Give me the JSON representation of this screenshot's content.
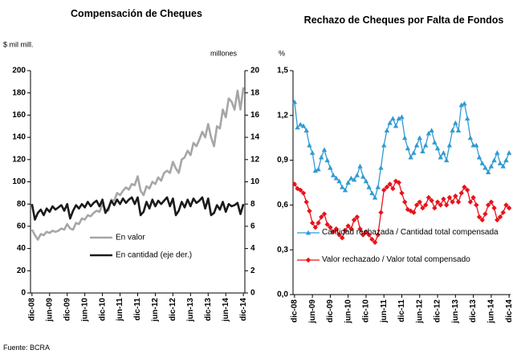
{
  "chart_data": [
    {
      "type": "line",
      "title": "Compensación de Cheques",
      "y_label": "$ mil mill.",
      "y2_label": "millones",
      "categories": [
        "dic-08",
        null,
        null,
        null,
        null,
        null,
        "jun-09",
        null,
        null,
        null,
        null,
        null,
        "dic-09",
        null,
        null,
        null,
        null,
        null,
        "jun-10",
        null,
        null,
        null,
        null,
        null,
        "dic-10",
        null,
        null,
        null,
        null,
        null,
        "jun-11",
        null,
        null,
        null,
        null,
        null,
        "dic-11",
        null,
        null,
        null,
        null,
        null,
        "jun-12",
        null,
        null,
        null,
        null,
        null,
        "dic-12",
        null,
        null,
        null,
        null,
        null,
        "jun-13",
        null,
        null,
        null,
        null,
        null,
        "dic-13",
        null,
        null,
        null,
        null,
        null,
        "jun-14",
        null,
        null,
        null,
        null,
        null,
        "dic-14"
      ],
      "series": [
        {
          "name": "En valor",
          "color": "#a6a6a6",
          "values": [
            57,
            52,
            48,
            53,
            52,
            55,
            54,
            56,
            55,
            56,
            58,
            57,
            62,
            58,
            57,
            63,
            62,
            67,
            66,
            70,
            69,
            72,
            74,
            73,
            80,
            75,
            74,
            84,
            83,
            90,
            88,
            92,
            95,
            93,
            98,
            97,
            105,
            92,
            88,
            96,
            94,
            100,
            98,
            104,
            101,
            108,
            110,
            108,
            118,
            112,
            108,
            120,
            122,
            128,
            124,
            135,
            132,
            138,
            145,
            140,
            152,
            140,
            132,
            150,
            148,
            165,
            158,
            175,
            172,
            165,
            182,
            165,
            185
          ]
        },
        {
          "name": "En cantidad (eje der.)",
          "color": "#1a1a1a",
          "axis": "y2",
          "values": [
            8.0,
            6.6,
            7.2,
            7.5,
            7.0,
            7.6,
            7.3,
            7.8,
            7.5,
            7.7,
            7.9,
            7.4,
            8.0,
            6.7,
            7.4,
            7.9,
            7.6,
            8.0,
            7.7,
            8.2,
            7.8,
            8.1,
            8.3,
            7.8,
            8.4,
            7.2,
            7.6,
            8.3,
            7.9,
            8.4,
            8.0,
            8.5,
            8.1,
            8.4,
            8.6,
            8.0,
            8.6,
            7.0,
            7.3,
            8.2,
            7.6,
            8.4,
            7.8,
            8.3,
            8.0,
            8.3,
            8.6,
            7.8,
            8.5,
            7.0,
            7.4,
            8.2,
            7.7,
            8.4,
            7.8,
            8.5,
            8.1,
            8.3,
            8.6,
            7.6,
            8.5,
            7.0,
            7.2,
            7.9,
            7.5,
            8.2,
            7.3,
            8.0,
            7.8,
            7.9,
            8.1,
            7.1,
            8.0
          ]
        }
      ],
      "ylim": [
        0,
        200
      ],
      "yticks": [
        0,
        20,
        40,
        60,
        80,
        100,
        120,
        140,
        160,
        180,
        200
      ],
      "y2lim": [
        0,
        20
      ],
      "y2ticks": [
        0,
        2,
        4,
        6,
        8,
        10,
        12,
        14,
        16,
        18,
        20
      ]
    },
    {
      "type": "line",
      "title": "Rechazo de Cheques por Falta de Fondos",
      "y_label": "%",
      "categories": [
        "dic-08",
        null,
        null,
        null,
        null,
        null,
        "jun-09",
        null,
        null,
        null,
        null,
        null,
        "dic-09",
        null,
        null,
        null,
        null,
        null,
        "jun-10",
        null,
        null,
        null,
        null,
        null,
        "dic-10",
        null,
        null,
        null,
        null,
        null,
        "jun-11",
        null,
        null,
        null,
        null,
        null,
        "dic-11",
        null,
        null,
        null,
        null,
        null,
        "jun-12",
        null,
        null,
        null,
        null,
        null,
        "dic-12",
        null,
        null,
        null,
        null,
        null,
        "jun-13",
        null,
        null,
        null,
        null,
        null,
        "dic-13",
        null,
        null,
        null,
        null,
        null,
        "jun-14",
        null,
        null,
        null,
        null,
        null,
        "dic-14"
      ],
      "series": [
        {
          "name": "Cantidad rechazada / Cantidad total compensada",
          "color": "#2f9bd3",
          "marker": "triangle",
          "values": [
            1.29,
            1.12,
            1.14,
            1.13,
            1.1,
            1.0,
            0.95,
            0.83,
            0.84,
            0.92,
            0.97,
            0.9,
            0.85,
            0.8,
            0.78,
            0.76,
            0.72,
            0.7,
            0.75,
            0.78,
            0.77,
            0.8,
            0.86,
            0.79,
            0.76,
            0.72,
            0.68,
            0.65,
            0.72,
            0.85,
            1.0,
            1.1,
            1.15,
            1.18,
            1.13,
            1.18,
            1.19,
            1.05,
            0.98,
            0.92,
            0.95,
            1.0,
            1.05,
            0.96,
            1.0,
            1.08,
            1.1,
            1.02,
            0.98,
            0.92,
            0.95,
            0.9,
            1.0,
            1.1,
            1.15,
            1.1,
            1.27,
            1.28,
            1.18,
            1.05,
            1.0,
            1.0,
            0.92,
            0.88,
            0.85,
            0.82,
            0.86,
            0.9,
            0.95,
            0.88,
            0.86,
            0.9,
            0.95
          ]
        },
        {
          "name": "Valor rechazado / Valor total compensado",
          "color": "#e8131b",
          "marker": "diamond",
          "values": [
            0.74,
            0.71,
            0.7,
            0.68,
            0.62,
            0.56,
            0.48,
            0.45,
            0.48,
            0.52,
            0.54,
            0.47,
            0.45,
            0.42,
            0.44,
            0.4,
            0.38,
            0.43,
            0.46,
            0.44,
            0.5,
            0.52,
            0.44,
            0.4,
            0.42,
            0.4,
            0.37,
            0.35,
            0.4,
            0.55,
            0.7,
            0.72,
            0.74,
            0.71,
            0.76,
            0.75,
            0.68,
            0.62,
            0.57,
            0.56,
            0.55,
            0.6,
            0.62,
            0.58,
            0.6,
            0.65,
            0.63,
            0.58,
            0.62,
            0.6,
            0.64,
            0.6,
            0.65,
            0.62,
            0.66,
            0.62,
            0.68,
            0.72,
            0.7,
            0.62,
            0.65,
            0.6,
            0.52,
            0.5,
            0.54,
            0.6,
            0.62,
            0.58,
            0.5,
            0.52,
            0.55,
            0.6,
            0.58
          ]
        }
      ],
      "ylim": [
        0,
        1.5
      ],
      "yticks": [
        {
          "value": 0,
          "label": "0,0"
        },
        {
          "value": 0.3,
          "label": "0,3"
        },
        {
          "value": 0.6,
          "label": "0,6"
        },
        {
          "value": 0.9,
          "label": "0,9"
        },
        {
          "value": 1.2,
          "label": "1,2"
        },
        {
          "value": 1.5,
          "label": "1,5"
        }
      ]
    }
  ],
  "source": "Fuente: BCRA"
}
